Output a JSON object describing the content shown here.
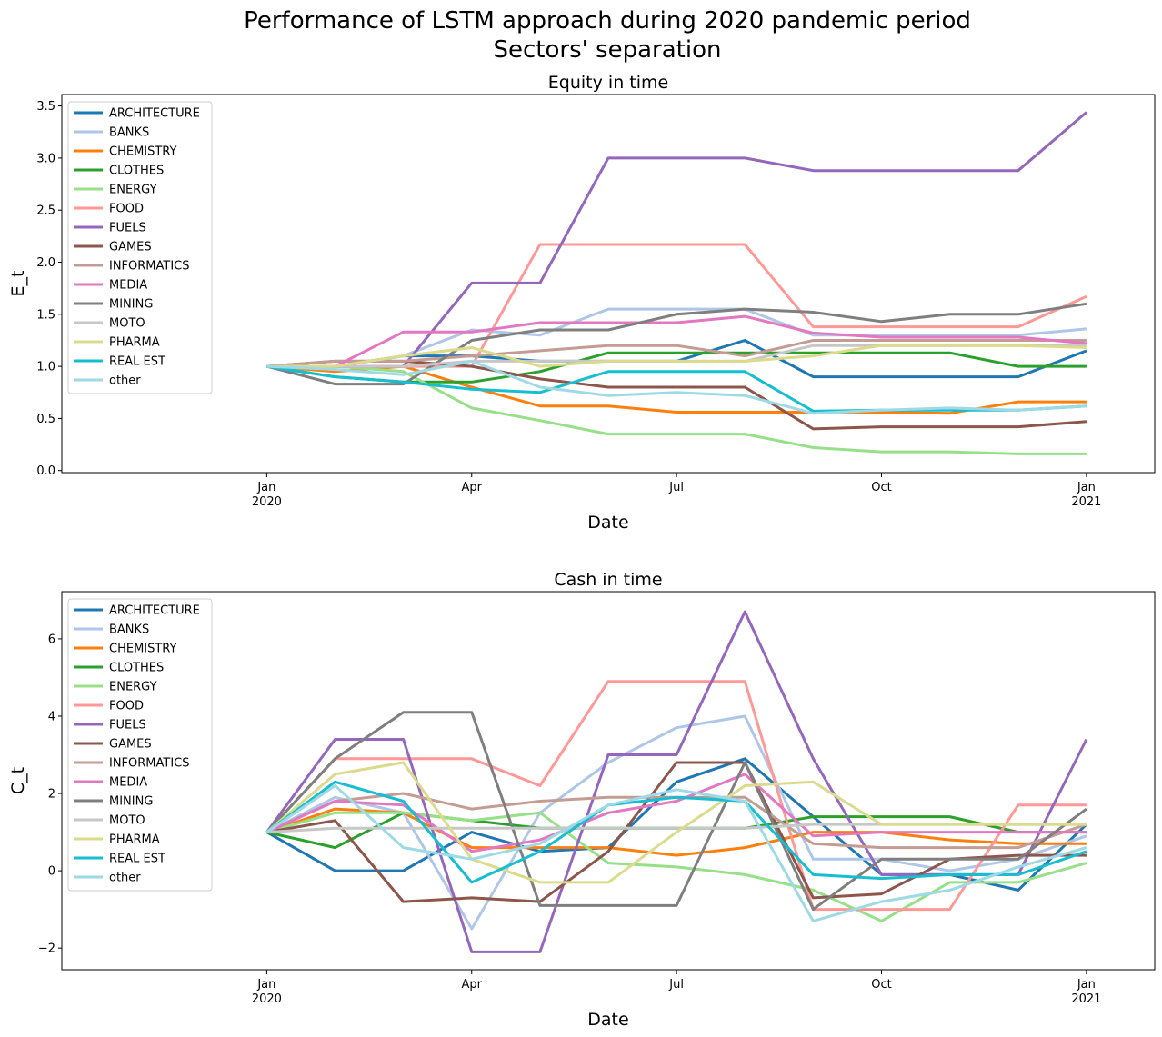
{
  "title_lines": [
    "Performance of LSTM approach during 2020 pandemic period",
    "Sectors' separation"
  ],
  "chart_data": [
    {
      "type": "line",
      "title": "Equity in time",
      "x_label": "Date",
      "y_label": "E_t",
      "legend": "upper left",
      "x": [
        "2020-01",
        "2020-02",
        "2020-03",
        "2020-04",
        "2020-05",
        "2020-06",
        "2020-07",
        "2020-08",
        "2020-09",
        "2020-10",
        "2020-11",
        "2020-12",
        "2021-01"
      ],
      "xlim": [
        "2019-10",
        "2021-02"
      ],
      "xticks": [
        {
          "value": "2020-01",
          "label": "Jan\n2020"
        },
        {
          "value": "2020-04",
          "label": "Apr"
        },
        {
          "value": "2020-07",
          "label": "Jul"
        },
        {
          "value": "2020-10",
          "label": "Oct"
        },
        {
          "value": "2021-01",
          "label": "Jan\n2021"
        }
      ],
      "ylim": [
        -0.02,
        3.61
      ],
      "yticks": [
        {
          "value": 0,
          "label": "0.0"
        },
        0.5,
        {
          "value": 1,
          "label": "1.0"
        },
        1.5,
        {
          "value": 2,
          "label": "2.0"
        },
        2.5,
        {
          "value": 3,
          "label": "3.0"
        },
        3.5
      ],
      "series": [
        {
          "name": "ARCHITECTURE",
          "color": "#1f77b4",
          "values": [
            1.0,
            1.0,
            1.1,
            1.1,
            1.05,
            1.05,
            1.05,
            1.25,
            0.9,
            0.9,
            0.9,
            0.9,
            1.15
          ]
        },
        {
          "name": "BANKS",
          "color": "#aec7e8",
          "values": [
            1.0,
            1.0,
            1.1,
            1.35,
            1.3,
            1.55,
            1.55,
            1.55,
            1.3,
            1.3,
            1.3,
            1.3,
            1.36
          ]
        },
        {
          "name": "CHEMISTRY",
          "color": "#ff7f0e",
          "values": [
            1.0,
            0.95,
            1.0,
            0.8,
            0.62,
            0.62,
            0.56,
            0.56,
            0.56,
            0.56,
            0.55,
            0.66,
            0.66
          ]
        },
        {
          "name": "CLOTHES",
          "color": "#2ca02c",
          "values": [
            1.0,
            0.9,
            0.85,
            0.85,
            0.95,
            1.13,
            1.13,
            1.13,
            1.13,
            1.13,
            1.13,
            1.0,
            1.0
          ]
        },
        {
          "name": "ENERGY",
          "color": "#98df8a",
          "values": [
            1.0,
            1.0,
            0.95,
            0.6,
            0.48,
            0.35,
            0.35,
            0.35,
            0.22,
            0.18,
            0.18,
            0.16,
            0.16
          ]
        },
        {
          "name": "FOOD",
          "color": "#ff9896",
          "values": [
            1.0,
            1.0,
            1.0,
            1.0,
            2.17,
            2.17,
            2.17,
            2.17,
            1.38,
            1.38,
            1.38,
            1.38,
            1.67
          ]
        },
        {
          "name": "FUELS",
          "color": "#9467bd",
          "values": [
            1.0,
            1.0,
            1.0,
            1.8,
            1.8,
            3.0,
            3.0,
            3.0,
            2.88,
            2.88,
            2.88,
            2.88,
            3.44
          ]
        },
        {
          "name": "GAMES",
          "color": "#8c564b",
          "values": [
            1.0,
            1.05,
            1.05,
            1.0,
            0.88,
            0.8,
            0.8,
            0.8,
            0.4,
            0.42,
            0.42,
            0.42,
            0.47
          ]
        },
        {
          "name": "INFORMATICS",
          "color": "#c49c94",
          "values": [
            1.0,
            1.05,
            1.05,
            1.1,
            1.15,
            1.2,
            1.2,
            1.1,
            1.25,
            1.25,
            1.25,
            1.25,
            1.25
          ]
        },
        {
          "name": "MEDIA",
          "color": "#e377c2",
          "values": [
            1.0,
            1.0,
            1.33,
            1.33,
            1.42,
            1.42,
            1.42,
            1.48,
            1.32,
            1.28,
            1.28,
            1.28,
            1.22
          ]
        },
        {
          "name": "MINING",
          "color": "#7f7f7f",
          "values": [
            1.0,
            0.83,
            0.83,
            1.25,
            1.35,
            1.35,
            1.5,
            1.55,
            1.52,
            1.43,
            1.5,
            1.5,
            1.6
          ]
        },
        {
          "name": "MOTO",
          "color": "#c7c7c7",
          "values": [
            1.0,
            1.0,
            1.0,
            1.05,
            1.05,
            1.05,
            1.05,
            1.05,
            1.2,
            1.2,
            1.2,
            1.2,
            1.2
          ]
        },
        {
          "name": "PHARMA",
          "color": "#dbdb8d",
          "values": [
            1.0,
            1.0,
            1.1,
            1.18,
            1.0,
            1.05,
            1.05,
            1.05,
            1.1,
            1.2,
            1.2,
            1.2,
            1.18
          ]
        },
        {
          "name": "REAL EST",
          "color": "#17becf",
          "values": [
            1.0,
            0.9,
            0.85,
            0.78,
            0.75,
            0.95,
            0.95,
            0.95,
            0.57,
            0.58,
            0.58,
            0.58,
            0.62
          ]
        },
        {
          "name": "other",
          "color": "#9edae5",
          "values": [
            1.0,
            0.97,
            0.92,
            1.05,
            0.8,
            0.72,
            0.75,
            0.72,
            0.55,
            0.58,
            0.6,
            0.58,
            0.62
          ]
        }
      ]
    },
    {
      "type": "line",
      "title": "Cash in time",
      "x_label": "Date",
      "y_label": "C_t",
      "legend": "upper left",
      "x": [
        "2020-01",
        "2020-02",
        "2020-03",
        "2020-04",
        "2020-05",
        "2020-06",
        "2020-07",
        "2020-08",
        "2020-09",
        "2020-10",
        "2020-11",
        "2020-12",
        "2021-01"
      ],
      "xlim": [
        "2019-10",
        "2021-02"
      ],
      "xticks": [
        {
          "value": "2020-01",
          "label": "Jan\n2020"
        },
        {
          "value": "2020-04",
          "label": "Apr"
        },
        {
          "value": "2020-07",
          "label": "Jul"
        },
        {
          "value": "2020-10",
          "label": "Oct"
        },
        {
          "value": "2021-01",
          "label": "Jan\n2021"
        }
      ],
      "ylim": [
        -2.56,
        7.22
      ],
      "yticks": [
        {
          "value": -2,
          "label": "−2"
        },
        0,
        2,
        4,
        6
      ],
      "series": [
        {
          "name": "ARCHITECTURE",
          "color": "#1f77b4",
          "values": [
            1,
            0,
            0,
            1,
            0.5,
            0.6,
            2.3,
            2.9,
            1.4,
            -0.1,
            -0.1,
            -0.5,
            1.2
          ]
        },
        {
          "name": "BANKS",
          "color": "#aec7e8",
          "values": [
            1,
            1.9,
            1.5,
            -1.5,
            1.5,
            2.8,
            3.7,
            4.0,
            0.3,
            0.3,
            0,
            0.3,
            0.9
          ]
        },
        {
          "name": "CHEMISTRY",
          "color": "#ff7f0e",
          "values": [
            1,
            1.6,
            1.5,
            0.6,
            0.6,
            0.6,
            0.4,
            0.6,
            1.0,
            1.0,
            0.8,
            0.7,
            0.7
          ]
        },
        {
          "name": "CLOTHES",
          "color": "#2ca02c",
          "values": [
            1,
            0.6,
            1.5,
            1.3,
            1.1,
            1.1,
            1.1,
            1.1,
            1.4,
            1.4,
            1.4,
            1.0,
            1.0
          ]
        },
        {
          "name": "ENERGY",
          "color": "#98df8a",
          "values": [
            1,
            1.5,
            1.5,
            1.3,
            1.5,
            0.2,
            0.1,
            -0.1,
            -0.5,
            -1.3,
            -0.3,
            -0.3,
            0.2
          ]
        },
        {
          "name": "FOOD",
          "color": "#ff9896",
          "values": [
            1,
            2.9,
            2.9,
            2.9,
            2.2,
            4.9,
            4.9,
            4.9,
            -1.0,
            -1.0,
            -1.0,
            1.7,
            1.7
          ]
        },
        {
          "name": "FUELS",
          "color": "#9467bd",
          "values": [
            1,
            3.4,
            3.4,
            -2.1,
            -2.1,
            3.0,
            3.0,
            6.7,
            2.9,
            -0.1,
            -0.1,
            -0.1,
            3.4
          ]
        },
        {
          "name": "GAMES",
          "color": "#8c564b",
          "values": [
            1,
            1.3,
            -0.8,
            -0.7,
            -0.8,
            0.5,
            2.8,
            2.8,
            -0.7,
            -0.6,
            0.3,
            0.4,
            0.4
          ]
        },
        {
          "name": "INFORMATICS",
          "color": "#c49c94",
          "values": [
            1,
            1.8,
            2.0,
            1.6,
            1.8,
            1.9,
            1.9,
            1.9,
            0.7,
            0.6,
            0.6,
            0.6,
            1.2
          ]
        },
        {
          "name": "MEDIA",
          "color": "#e377c2",
          "values": [
            1,
            1.8,
            1.7,
            0.5,
            0.8,
            1.5,
            1.8,
            2.5,
            0.9,
            1.0,
            1.0,
            1.0,
            1.0
          ]
        },
        {
          "name": "MINING",
          "color": "#7f7f7f",
          "values": [
            1,
            2.9,
            4.1,
            4.1,
            -0.9,
            -0.9,
            -0.9,
            2.8,
            -1.0,
            0.3,
            0.3,
            0.3,
            1.6
          ]
        },
        {
          "name": "MOTO",
          "color": "#c7c7c7",
          "values": [
            1,
            1.1,
            1.1,
            1.1,
            1.1,
            1.1,
            1.1,
            1.1,
            1.2,
            1.2,
            1.2,
            1.2,
            1.2
          ]
        },
        {
          "name": "PHARMA",
          "color": "#dbdb8d",
          "values": [
            1,
            2.5,
            2.8,
            0.3,
            -0.3,
            -0.3,
            1.0,
            2.2,
            2.3,
            1.2,
            1.2,
            1.2,
            1.2
          ]
        },
        {
          "name": "REAL EST",
          "color": "#17becf",
          "values": [
            1,
            2.3,
            1.8,
            -0.3,
            0.5,
            1.7,
            1.9,
            1.8,
            -0.1,
            -0.2,
            -0.1,
            -0.1,
            0.5
          ]
        },
        {
          "name": "other",
          "color": "#9edae5",
          "values": [
            1,
            2.2,
            0.6,
            0.3,
            0.7,
            1.7,
            2.1,
            1.8,
            -1.3,
            -0.8,
            -0.5,
            0.1,
            0.6
          ]
        }
      ]
    }
  ]
}
